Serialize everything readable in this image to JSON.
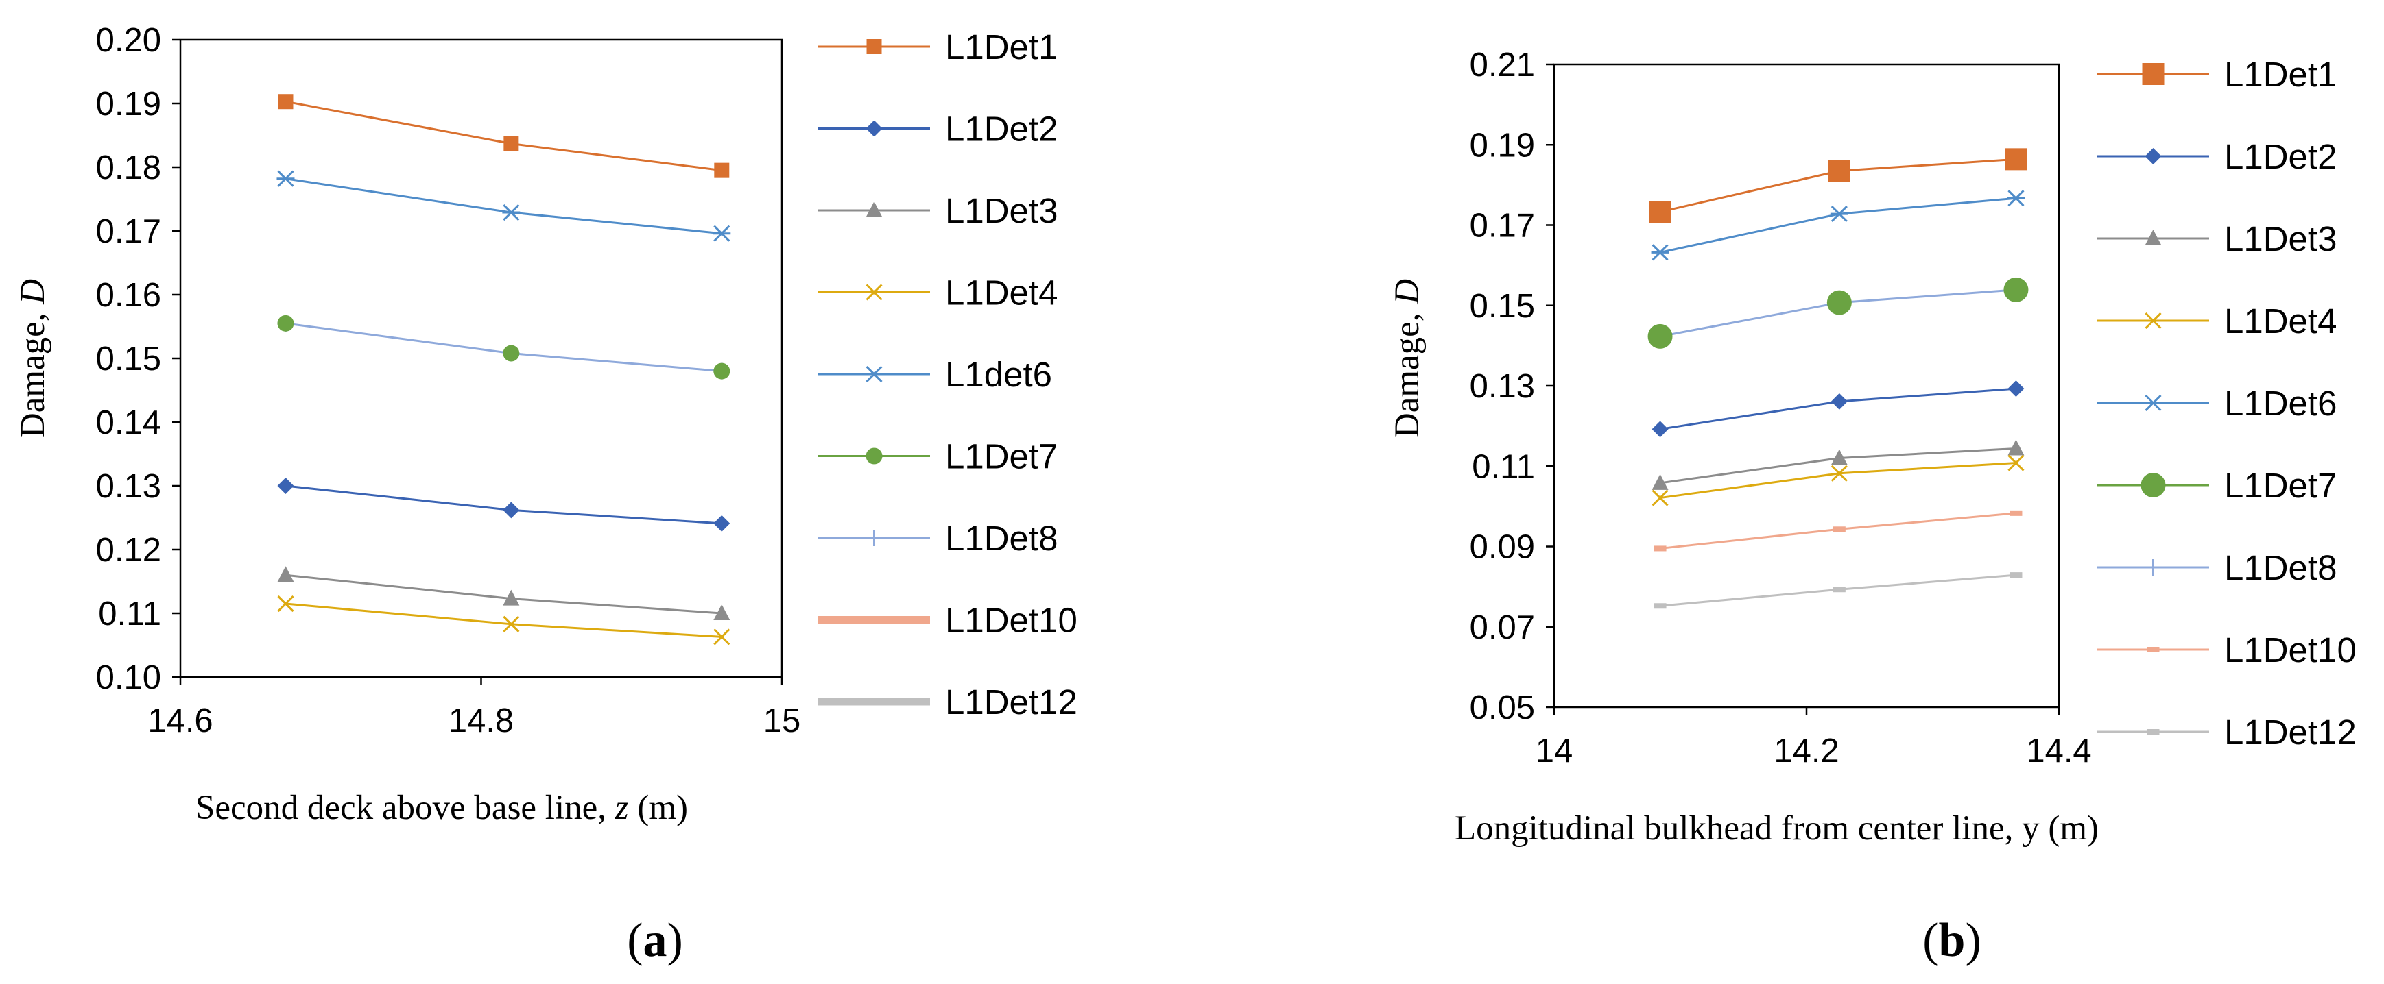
{
  "chart_data": [
    {
      "type": "line",
      "panel": "a",
      "xlabel": {
        "text": "Second deck above base line, ",
        "var": "z",
        "unit": " (m)"
      },
      "ylabel": {
        "text": "Damage, ",
        "var": "D"
      },
      "xlim": [
        14.6,
        15.0
      ],
      "ylim": [
        0.1,
        0.2
      ],
      "xticks": [
        14.6,
        14.8,
        15
      ],
      "xtick_labels": [
        "14.6",
        "14.8",
        "15"
      ],
      "yticks": [
        0.1,
        0.11,
        0.12,
        0.13,
        0.14,
        0.15,
        0.16,
        0.17,
        0.18,
        0.19,
        0.2
      ],
      "ytick_labels": [
        "0.10",
        "0.11",
        "0.12",
        "0.13",
        "0.14",
        "0.15",
        "0.16",
        "0.17",
        "0.18",
        "0.19",
        "0.20"
      ],
      "grid": false,
      "legend_position": "right",
      "x": [
        14.67,
        14.82,
        14.96
      ],
      "series": [
        {
          "name": "L1Det1",
          "color": "#D9702E",
          "marker": "square",
          "values": [
            0.1903,
            0.1837,
            0.1795
          ]
        },
        {
          "name": "L1Det2",
          "color": "#3A63B3",
          "marker": "diamond",
          "values": [
            0.13,
            0.1262,
            0.1241
          ]
        },
        {
          "name": "L1Det3",
          "color": "#8C8C8C",
          "marker": "triangle",
          "values": [
            0.116,
            0.1123,
            0.11
          ]
        },
        {
          "name": "L1Det4",
          "color": "#DDAA10",
          "marker": "x",
          "values": [
            0.1115,
            0.1083,
            0.1063
          ]
        },
        {
          "name": "L1det6",
          "color": "#4F8CC9",
          "marker": "star",
          "values": [
            0.1782,
            0.1729,
            0.1696
          ]
        },
        {
          "name": "L1Det7",
          "color": "#6AA342",
          "marker": "circle",
          "values": [
            null,
            null,
            null
          ]
        },
        {
          "name": "L1Det8",
          "color": "#8EA9DB",
          "marker": "plus",
          "values": [
            0.1555,
            0.1508,
            0.148
          ]
        },
        {
          "name": "L1Det10",
          "color": "#F0A78C",
          "marker": "none",
          "thick": true,
          "values": [
            null,
            null,
            null
          ]
        },
        {
          "name": "L1Det12",
          "color": "#BFBFBF",
          "marker": "none",
          "thick": true,
          "values": [
            null,
            null,
            null
          ]
        }
      ],
      "overlay_markers": [
        {
          "series": "L1Det7",
          "color": "#6AA342",
          "marker": "circle",
          "values": [
            0.1555,
            0.1508,
            0.148
          ]
        }
      ]
    },
    {
      "type": "line",
      "panel": "b",
      "xlabel": {
        "text": "Longitudinal bulkhead from center line, y (m)"
      },
      "ylabel": {
        "text": "Damage, ",
        "var": "D"
      },
      "xlim": [
        14.0,
        14.4
      ],
      "ylim": [
        0.05,
        0.21
      ],
      "xticks": [
        14,
        14.2,
        14.4
      ],
      "xtick_labels": [
        "14",
        "14.2",
        "14.4"
      ],
      "yticks": [
        0.05,
        0.07,
        0.09,
        0.11,
        0.13,
        0.15,
        0.17,
        0.19,
        0.21
      ],
      "ytick_labels": [
        "0.05",
        "0.07",
        "0.09",
        "0.11",
        "0.13",
        "0.15",
        "0.17",
        "0.19",
        "0.21"
      ],
      "grid": false,
      "legend_position": "right",
      "x": [
        14.084,
        14.226,
        14.366
      ],
      "series": [
        {
          "name": "L1Det1",
          "color": "#D9702E",
          "marker": "square-big",
          "values": [
            0.1733,
            0.1835,
            0.1864
          ]
        },
        {
          "name": "L1Det2",
          "color": "#3A63B3",
          "marker": "diamond",
          "values": [
            0.1192,
            0.1261,
            0.1293
          ]
        },
        {
          "name": "L1Det3",
          "color": "#8C8C8C",
          "marker": "triangle",
          "values": [
            0.1058,
            0.112,
            0.1144
          ]
        },
        {
          "name": "L1Det4",
          "color": "#DDAA10",
          "marker": "x",
          "values": [
            0.1021,
            0.1082,
            0.1108
          ]
        },
        {
          "name": "L1Det6",
          "color": "#4F8CC9",
          "marker": "star",
          "values": [
            0.1632,
            0.1728,
            0.1767
          ]
        },
        {
          "name": "L1Det7",
          "color": "#6AA342",
          "marker": "circle-big",
          "values": [
            null,
            null,
            null
          ]
        },
        {
          "name": "L1Det8",
          "color": "#8EA9DB",
          "marker": "plus",
          "values": [
            0.1423,
            0.1507,
            0.1539
          ]
        },
        {
          "name": "L1Det10",
          "color": "#F0A78C",
          "marker": "dash",
          "values": [
            0.0895,
            0.0943,
            0.0983
          ]
        },
        {
          "name": "L1Det12",
          "color": "#BFBFBF",
          "marker": "dash",
          "values": [
            0.0752,
            0.0793,
            0.0829
          ]
        }
      ],
      "overlay_markers": [
        {
          "series": "L1Det7",
          "color": "#6AA342",
          "marker": "circle-big",
          "values": [
            0.1423,
            0.1507,
            0.1539
          ]
        }
      ]
    }
  ],
  "panel_labels": {
    "a": "a",
    "b": "b"
  }
}
